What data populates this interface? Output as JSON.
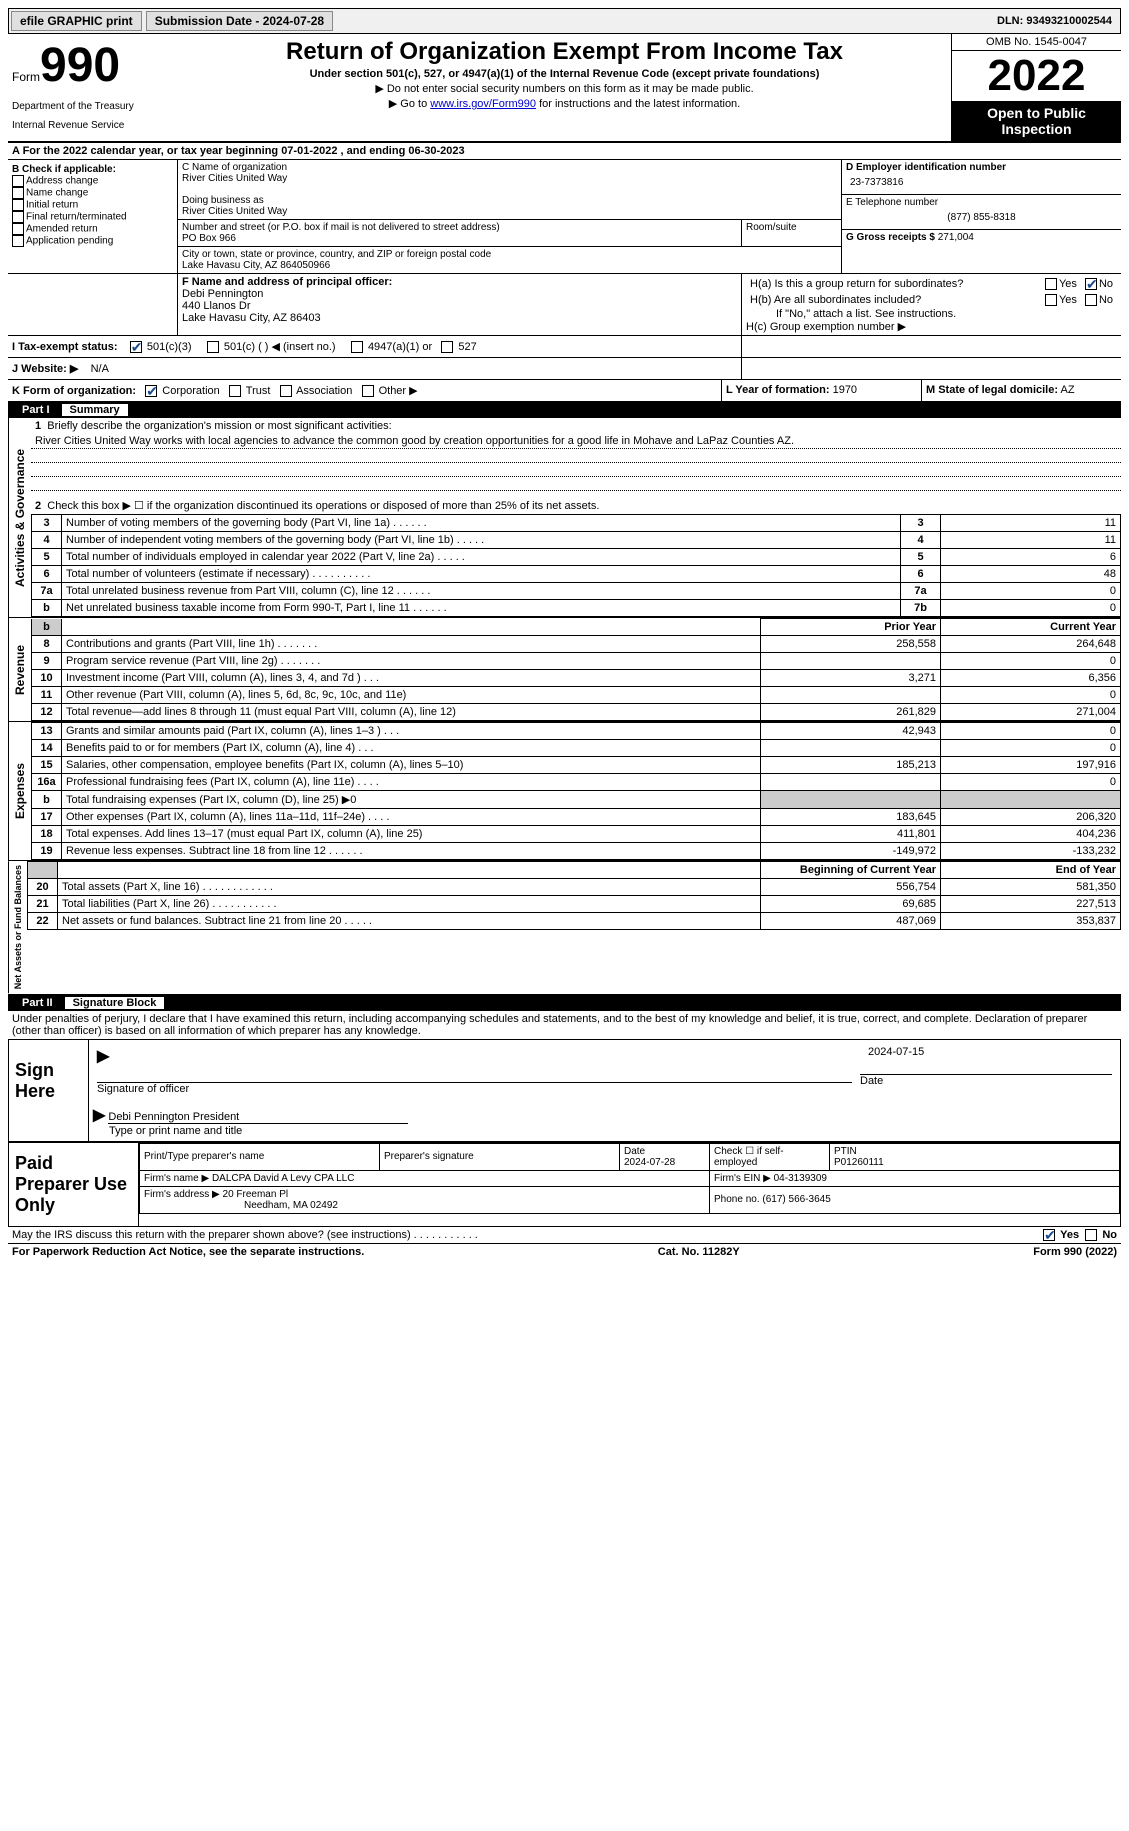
{
  "topbar": {
    "efile": "efile GRAPHIC print",
    "subdate_label": "Submission Date - 2024-07-28",
    "dln_label": "DLN: 93493210002544"
  },
  "header": {
    "form": "Form",
    "formnum": "990",
    "dept": "Department of the Treasury",
    "irs": "Internal Revenue Service",
    "title": "Return of Organization Exempt From Income Tax",
    "subtitle": "Under section 501(c), 527, or 4947(a)(1) of the Internal Revenue Code (except private foundations)",
    "instr1": "▶ Do not enter social security numbers on this form as it may be made public.",
    "instr2_prefix": "▶ Go to ",
    "instr2_link": "www.irs.gov/Form990",
    "instr2_suffix": " for instructions and the latest information.",
    "omb": "OMB No. 1545-0047",
    "year": "2022",
    "public": "Open to Public Inspection"
  },
  "lineA": "A For the 2022 calendar year, or tax year beginning 07-01-2022     , and ending 06-30-2023",
  "boxB": {
    "title": "B Check if applicable:",
    "opts": [
      "Address change",
      "Name change",
      "Initial return",
      "Final return/terminated",
      "Amended return",
      "Application pending"
    ]
  },
  "boxC": {
    "label": "C Name of organization",
    "name": "River Cities United Way",
    "dba_label": "Doing business as",
    "dba": "River Cities United Way",
    "addr_label": "Number and street (or P.O. box if mail is not delivered to street address)",
    "addr": "PO Box 966",
    "room_label": "Room/suite",
    "city_label": "City or town, state or province, country, and ZIP or foreign postal code",
    "city": "Lake Havasu City, AZ   864050966"
  },
  "boxD": {
    "label": "D Employer identification number",
    "val": "23-7373816"
  },
  "boxE": {
    "label": "E Telephone number",
    "val": "(877) 855-8318"
  },
  "boxG": {
    "label": "G Gross receipts $",
    "val": "271,004"
  },
  "boxF": {
    "label": "F  Name and address of principal officer:",
    "name": "Debi Pennington",
    "addr1": "440 Llanos Dr",
    "addr2": "Lake Havasu City, AZ   86403"
  },
  "boxH": {
    "a_label": "H(a)  Is this a group return for subordinates?",
    "b_label": "H(b)  Are all subordinates included?",
    "b_note": "If \"No,\" attach a list. See instructions.",
    "c_label": "H(c)  Group exemption number ▶",
    "yes": "Yes",
    "no": "No"
  },
  "boxI": {
    "label": "I   Tax-exempt status:",
    "o1": "501(c)(3)",
    "o2": "501(c) (   ) ◀ (insert no.)",
    "o3": "4947(a)(1) or",
    "o4": "527"
  },
  "boxJ": {
    "label": "J   Website: ▶",
    "val": "N/A"
  },
  "boxK": {
    "label": "K Form of organization:",
    "o1": "Corporation",
    "o2": "Trust",
    "o3": "Association",
    "o4": "Other ▶"
  },
  "boxL": {
    "label": "L Year of formation:",
    "val": "1970"
  },
  "boxM": {
    "label": "M State of legal domicile:",
    "val": "AZ"
  },
  "part1": {
    "num": "Part I",
    "title": "Summary"
  },
  "summary": {
    "q1": "Briefly describe the organization's mission or most significant activities:",
    "mission": "River Cities United Way works with local agencies to advance the common good by creation opportunities for a good life in Mohave and LaPaz Counties AZ.",
    "q2": "Check this box ▶ ☐  if the organization discontinued its operations or disposed of more than 25% of its net assets.",
    "rows_gov": [
      {
        "n": "3",
        "lbl": "Number of voting members of the governing body (Part VI, line 1a)   .    .    .    .    .    .",
        "box": "3",
        "val": "11"
      },
      {
        "n": "4",
        "lbl": "Number of independent voting members of the governing body (Part VI, line 1b)   .    .    .    .    .",
        "box": "4",
        "val": "11"
      },
      {
        "n": "5",
        "lbl": "Total number of individuals employed in calendar year 2022 (Part V, line 2a)   .    .    .    .    .",
        "box": "5",
        "val": "6"
      },
      {
        "n": "6",
        "lbl": "Total number of volunteers (estimate if necessary)   .    .    .    .    .    .    .    .    .    .",
        "box": "6",
        "val": "48"
      },
      {
        "n": "7a",
        "lbl": "Total unrelated business revenue from Part VIII, column (C), line 12   .    .    .    .    .    .",
        "box": "7a",
        "val": "0"
      },
      {
        "n": "b",
        "lbl": "Net unrelated business taxable income from Form 990-T, Part I, line 11   .    .    .    .    .    .",
        "box": "7b",
        "val": "0"
      }
    ],
    "hdr_prior": "Prior Year",
    "hdr_curr": "Current Year",
    "rows_rev": [
      {
        "n": "8",
        "lbl": "Contributions and grants (Part VIII, line 1h)   .    .    .    .    .    .    .",
        "p": "258,558",
        "c": "264,648"
      },
      {
        "n": "9",
        "lbl": "Program service revenue (Part VIII, line 2g)   .    .    .    .    .    .    .",
        "p": "",
        "c": "0"
      },
      {
        "n": "10",
        "lbl": "Investment income (Part VIII, column (A), lines 3, 4, and 7d )   .    .    .",
        "p": "3,271",
        "c": "6,356"
      },
      {
        "n": "11",
        "lbl": "Other revenue (Part VIII, column (A), lines 5, 6d, 8c, 9c, 10c, and 11e)",
        "p": "",
        "c": "0"
      },
      {
        "n": "12",
        "lbl": "Total revenue—add lines 8 through 11 (must equal Part VIII, column (A), line 12)",
        "p": "261,829",
        "c": "271,004"
      }
    ],
    "rows_exp": [
      {
        "n": "13",
        "lbl": "Grants and similar amounts paid (Part IX, column (A), lines 1–3 )   .    .    .",
        "p": "42,943",
        "c": "0"
      },
      {
        "n": "14",
        "lbl": "Benefits paid to or for members (Part IX, column (A), line 4)   .    .    .",
        "p": "",
        "c": "0"
      },
      {
        "n": "15",
        "lbl": "Salaries, other compensation, employee benefits (Part IX, column (A), lines 5–10)",
        "p": "185,213",
        "c": "197,916"
      },
      {
        "n": "16a",
        "lbl": "Professional fundraising fees (Part IX, column (A), line 11e)   .    .    .    .",
        "p": "",
        "c": "0"
      },
      {
        "n": "b",
        "lbl": "Total fundraising expenses (Part IX, column (D), line 25) ▶0",
        "p": "",
        "c": "",
        "shade": true
      },
      {
        "n": "17",
        "lbl": "Other expenses (Part IX, column (A), lines 11a–11d, 11f–24e)   .    .    .    .",
        "p": "183,645",
        "c": "206,320"
      },
      {
        "n": "18",
        "lbl": "Total expenses. Add lines 13–17 (must equal Part IX, column (A), line 25)",
        "p": "411,801",
        "c": "404,236"
      },
      {
        "n": "19",
        "lbl": "Revenue less expenses. Subtract line 18 from line 12   .    .    .    .    .    .",
        "p": "-149,972",
        "c": "-133,232"
      }
    ],
    "hdr_boy": "Beginning of Current Year",
    "hdr_eoy": "End of Year",
    "rows_net": [
      {
        "n": "20",
        "lbl": "Total assets (Part X, line 16)   .    .    .    .    .    .    .    .    .    .    .    .",
        "p": "556,754",
        "c": "581,350"
      },
      {
        "n": "21",
        "lbl": "Total liabilities (Part X, line 26)   .    .    .    .    .    .    .    .    .    .    .",
        "p": "69,685",
        "c": "227,513"
      },
      {
        "n": "22",
        "lbl": "Net assets or fund balances. Subtract line 21 from line 20   .    .    .    .    .",
        "p": "487,069",
        "c": "353,837"
      }
    ]
  },
  "side_labels": {
    "gov": "Activities & Governance",
    "rev": "Revenue",
    "exp": "Expenses",
    "net": "Net Assets or Fund Balances"
  },
  "part2": {
    "num": "Part II",
    "title": "Signature Block"
  },
  "sig": {
    "decl": "Under penalties of perjury, I declare that I have examined this return, including accompanying schedules and statements, and to the best of my knowledge and belief, it is true, correct, and complete. Declaration of preparer (other than officer) is based on all information of which preparer has any knowledge.",
    "sign_here": "Sign Here",
    "sig_officer": "Signature of officer",
    "date": "2024-07-15",
    "date_lbl": "Date",
    "name_title": "Debi Pennington  President",
    "name_lbl": "Type or print name and title"
  },
  "prep": {
    "lbl": "Paid Preparer Use Only",
    "name_lbl": "Print/Type preparer's name",
    "sig_lbl": "Preparer's signature",
    "date_lbl": "Date",
    "date": "2024-07-28",
    "self_lbl": "Check ☐ if self-employed",
    "ptin_lbl": "PTIN",
    "ptin": "P01260111",
    "firm_name_lbl": "Firm's name      ▶",
    "firm_name": "DALCPA David A Levy CPA LLC",
    "firm_ein_lbl": "Firm's EIN ▶",
    "firm_ein": "04-3139309",
    "firm_addr_lbl": "Firm's address ▶",
    "firm_addr1": "20 Freeman Pl",
    "firm_addr2": "Needham, MA   02492",
    "phone_lbl": "Phone no.",
    "phone": "(617) 566-3645"
  },
  "discuss": {
    "q": "May the IRS discuss this return with the preparer shown above? (see instructions)   .    .    .    .    .    .    .    .    .    .    .",
    "yes": "Yes",
    "no": "No"
  },
  "footer": {
    "left": "For Paperwork Reduction Act Notice, see the separate instructions.",
    "mid": "Cat. No. 11282Y",
    "right": "Form 990 (2022)"
  }
}
